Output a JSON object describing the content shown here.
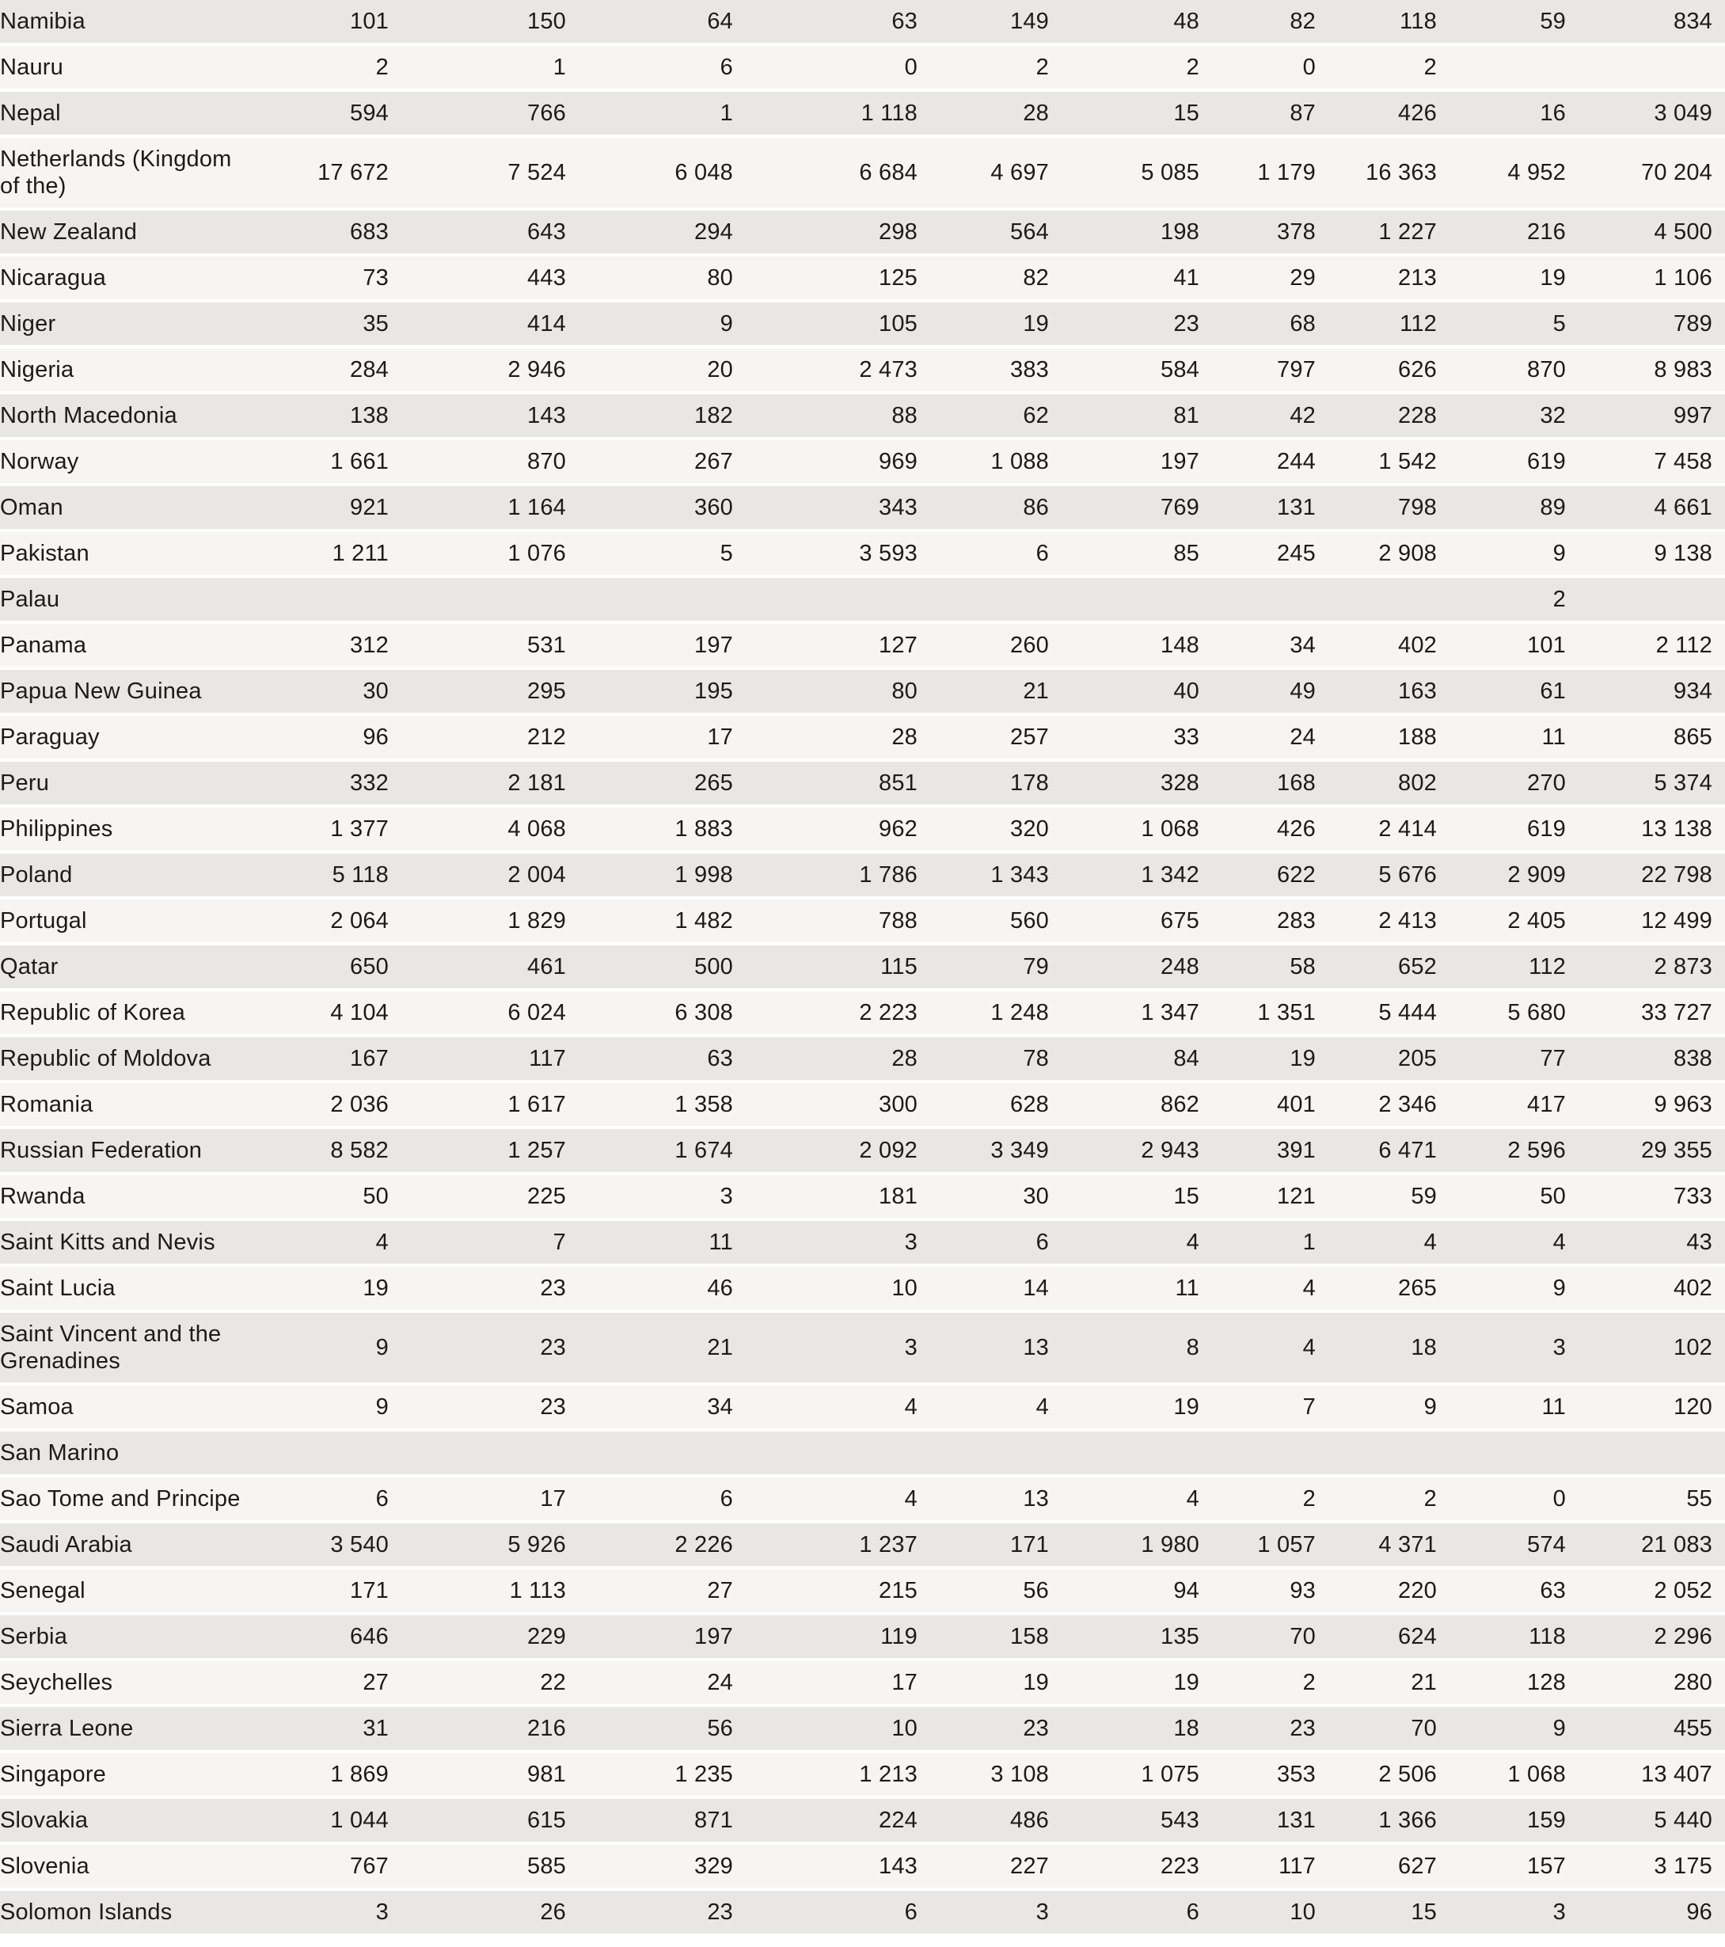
{
  "style": {
    "row_stripe_color": "#e8e7e5",
    "row_light_color": "#f6f5f3",
    "separator_color": "#ffffff",
    "text_color": "#1c1b19"
  },
  "table": {
    "value_columns": 10,
    "rows": [
      {
        "country": "Namibia",
        "values": [
          "101",
          "150",
          "64",
          "63",
          "149",
          "48",
          "82",
          "118",
          "59",
          "834"
        ]
      },
      {
        "country": "Nauru",
        "values": [
          "2",
          "1",
          "6",
          "0",
          "2",
          "2",
          "0",
          "2",
          "",
          ""
        ]
      },
      {
        "country": "Nepal",
        "values": [
          "594",
          "766",
          "1",
          "1 118",
          "28",
          "15",
          "87",
          "426",
          "16",
          "3 049"
        ]
      },
      {
        "country": "Netherlands (Kingdom\nof the)",
        "values": [
          "17 672",
          "7 524",
          "6 048",
          "6 684",
          "4 697",
          "5 085",
          "1 179",
          "16 363",
          "4 952",
          "70 204"
        ]
      },
      {
        "country": "New Zealand",
        "values": [
          "683",
          "643",
          "294",
          "298",
          "564",
          "198",
          "378",
          "1 227",
          "216",
          "4 500"
        ]
      },
      {
        "country": "Nicaragua",
        "values": [
          "73",
          "443",
          "80",
          "125",
          "82",
          "41",
          "29",
          "213",
          "19",
          "1 106"
        ]
      },
      {
        "country": "Niger",
        "values": [
          "35",
          "414",
          "9",
          "105",
          "19",
          "23",
          "68",
          "112",
          "5",
          "789"
        ]
      },
      {
        "country": "Nigeria",
        "values": [
          "284",
          "2 946",
          "20",
          "2 473",
          "383",
          "584",
          "797",
          "626",
          "870",
          "8 983"
        ]
      },
      {
        "country": "North Macedonia",
        "values": [
          "138",
          "143",
          "182",
          "88",
          "62",
          "81",
          "42",
          "228",
          "32",
          "997"
        ]
      },
      {
        "country": "Norway",
        "values": [
          "1 661",
          "870",
          "267",
          "969",
          "1 088",
          "197",
          "244",
          "1 542",
          "619",
          "7 458"
        ]
      },
      {
        "country": "Oman",
        "values": [
          "921",
          "1 164",
          "360",
          "343",
          "86",
          "769",
          "131",
          "798",
          "89",
          "4 661"
        ]
      },
      {
        "country": "Pakistan",
        "values": [
          "1 211",
          "1 076",
          "5",
          "3 593",
          "6",
          "85",
          "245",
          "2 908",
          "9",
          "9 138"
        ]
      },
      {
        "country": "Palau",
        "values": [
          "",
          "",
          "",
          "",
          "",
          "",
          "",
          "",
          "2",
          ""
        ]
      },
      {
        "country": "Panama",
        "values": [
          "312",
          "531",
          "197",
          "127",
          "260",
          "148",
          "34",
          "402",
          "101",
          "2 112"
        ]
      },
      {
        "country": "Papua New Guinea",
        "values": [
          "30",
          "295",
          "195",
          "80",
          "21",
          "40",
          "49",
          "163",
          "61",
          "934"
        ]
      },
      {
        "country": "Paraguay",
        "values": [
          "96",
          "212",
          "17",
          "28",
          "257",
          "33",
          "24",
          "188",
          "11",
          "865"
        ]
      },
      {
        "country": "Peru",
        "values": [
          "332",
          "2 181",
          "265",
          "851",
          "178",
          "328",
          "168",
          "802",
          "270",
          "5 374"
        ]
      },
      {
        "country": "Philippines",
        "values": [
          "1 377",
          "4 068",
          "1 883",
          "962",
          "320",
          "1 068",
          "426",
          "2 414",
          "619",
          "13 138"
        ]
      },
      {
        "country": "Poland",
        "values": [
          "5 118",
          "2 004",
          "1 998",
          "1 786",
          "1 343",
          "1 342",
          "622",
          "5 676",
          "2 909",
          "22 798"
        ]
      },
      {
        "country": "Portugal",
        "values": [
          "2 064",
          "1 829",
          "1 482",
          "788",
          "560",
          "675",
          "283",
          "2 413",
          "2 405",
          "12 499"
        ]
      },
      {
        "country": "Qatar",
        "values": [
          "650",
          "461",
          "500",
          "115",
          "79",
          "248",
          "58",
          "652",
          "112",
          "2 873"
        ]
      },
      {
        "country": "Republic of Korea",
        "values": [
          "4 104",
          "6 024",
          "6 308",
          "2 223",
          "1 248",
          "1 347",
          "1 351",
          "5 444",
          "5 680",
          "33 727"
        ]
      },
      {
        "country": "Republic of Moldova",
        "values": [
          "167",
          "117",
          "63",
          "28",
          "78",
          "84",
          "19",
          "205",
          "77",
          "838"
        ]
      },
      {
        "country": "Romania",
        "values": [
          "2 036",
          "1 617",
          "1 358",
          "300",
          "628",
          "862",
          "401",
          "2 346",
          "417",
          "9 963"
        ]
      },
      {
        "country": "Russian Federation",
        "values": [
          "8 582",
          "1 257",
          "1 674",
          "2 092",
          "3 349",
          "2 943",
          "391",
          "6 471",
          "2 596",
          "29 355"
        ]
      },
      {
        "country": "Rwanda",
        "values": [
          "50",
          "225",
          "3",
          "181",
          "30",
          "15",
          "121",
          "59",
          "50",
          "733"
        ]
      },
      {
        "country": "Saint Kitts and Nevis",
        "values": [
          "4",
          "7",
          "11",
          "3",
          "6",
          "4",
          "1",
          "4",
          "4",
          "43"
        ]
      },
      {
        "country": "Saint Lucia",
        "values": [
          "19",
          "23",
          "46",
          "10",
          "14",
          "11",
          "4",
          "265",
          "9",
          "402"
        ]
      },
      {
        "country": "Saint Vincent and the\nGrenadines",
        "values": [
          "9",
          "23",
          "21",
          "3",
          "13",
          "8",
          "4",
          "18",
          "3",
          "102"
        ]
      },
      {
        "country": "Samoa",
        "values": [
          "9",
          "23",
          "34",
          "4",
          "4",
          "19",
          "7",
          "9",
          "11",
          "120"
        ]
      },
      {
        "country": "San Marino",
        "values": [
          "",
          "",
          "",
          "",
          "",
          "",
          "",
          "",
          "",
          ""
        ]
      },
      {
        "country": "Sao Tome and Principe",
        "values": [
          "6",
          "17",
          "6",
          "4",
          "13",
          "4",
          "2",
          "2",
          "0",
          "55"
        ]
      },
      {
        "country": "Saudi Arabia",
        "values": [
          "3 540",
          "5 926",
          "2 226",
          "1 237",
          "171",
          "1 980",
          "1 057",
          "4 371",
          "574",
          "21 083"
        ]
      },
      {
        "country": "Senegal",
        "values": [
          "171",
          "1 113",
          "27",
          "215",
          "56",
          "94",
          "93",
          "220",
          "63",
          "2 052"
        ]
      },
      {
        "country": "Serbia",
        "values": [
          "646",
          "229",
          "197",
          "119",
          "158",
          "135",
          "70",
          "624",
          "118",
          "2 296"
        ]
      },
      {
        "country": "Seychelles",
        "values": [
          "27",
          "22",
          "24",
          "17",
          "19",
          "19",
          "2",
          "21",
          "128",
          "280"
        ]
      },
      {
        "country": "Sierra Leone",
        "values": [
          "31",
          "216",
          "56",
          "10",
          "23",
          "18",
          "23",
          "70",
          "9",
          "455"
        ]
      },
      {
        "country": "Singapore",
        "values": [
          "1 869",
          "981",
          "1 235",
          "1 213",
          "3 108",
          "1 075",
          "353",
          "2 506",
          "1 068",
          "13 407"
        ]
      },
      {
        "country": "Slovakia",
        "values": [
          "1 044",
          "615",
          "871",
          "224",
          "486",
          "543",
          "131",
          "1 366",
          "159",
          "5 440"
        ]
      },
      {
        "country": "Slovenia",
        "values": [
          "767",
          "585",
          "329",
          "143",
          "227",
          "223",
          "117",
          "627",
          "157",
          "3 175"
        ]
      },
      {
        "country": "Solomon Islands",
        "values": [
          "3",
          "26",
          "23",
          "6",
          "3",
          "6",
          "10",
          "15",
          "3",
          "96"
        ]
      }
    ]
  }
}
